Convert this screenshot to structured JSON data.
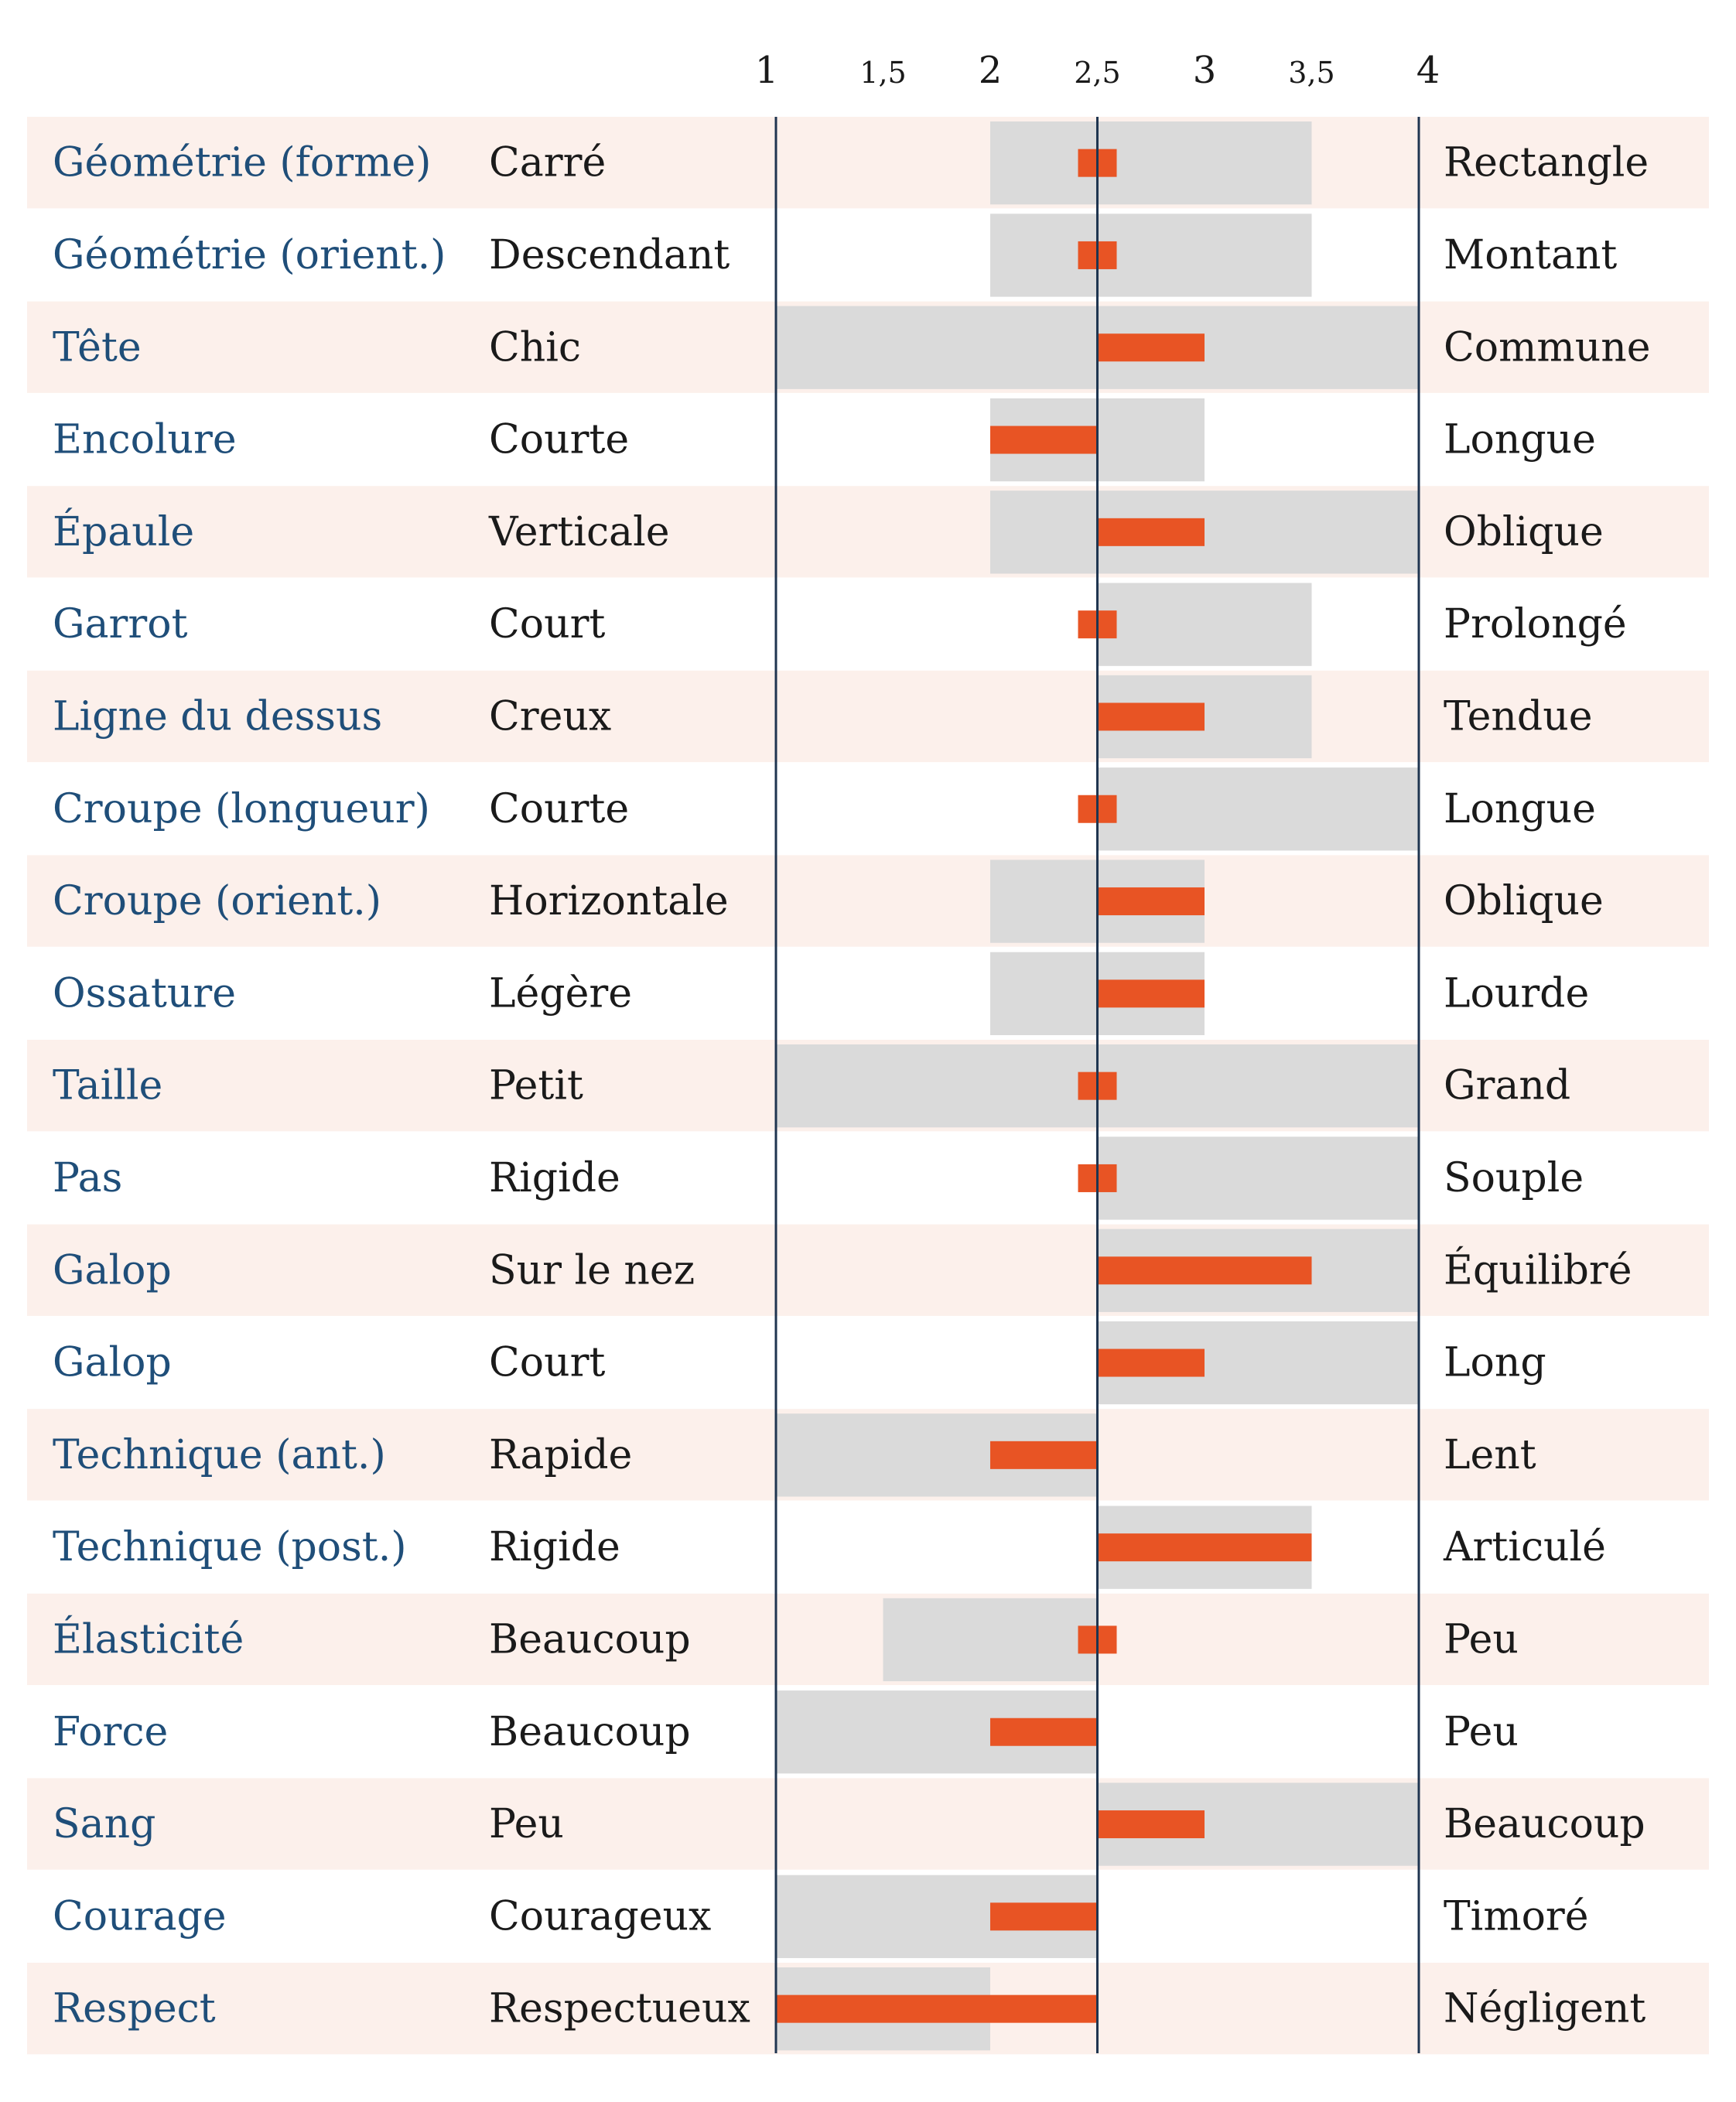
{
  "chart_data": {
    "type": "bar",
    "xlim": [
      1,
      4
    ],
    "center": 2.5,
    "ticks": [
      {
        "value": 1,
        "label": "1",
        "major": true
      },
      {
        "value": 1.5,
        "label": "1,5",
        "major": false
      },
      {
        "value": 2,
        "label": "2",
        "major": true
      },
      {
        "value": 2.5,
        "label": "2,5",
        "major": false
      },
      {
        "value": 3,
        "label": "3",
        "major": true
      },
      {
        "value": 3.5,
        "label": "3,5",
        "major": false
      },
      {
        "value": 4,
        "label": "4",
        "major": true
      }
    ],
    "rows": [
      {
        "name": "Géométrie (forme)",
        "left": "Carré",
        "right": "Rectangle",
        "range": [
          2,
          3.5
        ],
        "value": 2.5
      },
      {
        "name": "Géométrie (orient.)",
        "left": "Descendant",
        "right": "Montant",
        "range": [
          2,
          3.5
        ],
        "value": 2.5
      },
      {
        "name": "Tête",
        "left": "Chic",
        "right": "Commune",
        "range": [
          1,
          4
        ],
        "value": 3
      },
      {
        "name": "Encolure",
        "left": "Courte",
        "right": "Longue",
        "range": [
          2,
          3
        ],
        "value": 2
      },
      {
        "name": "Épaule",
        "left": "Verticale",
        "right": "Oblique",
        "range": [
          2,
          4
        ],
        "value": 3
      },
      {
        "name": "Garrot",
        "left": "Court",
        "right": "Prolongé",
        "range": [
          2.5,
          3.5
        ],
        "value": 2.5
      },
      {
        "name": "Ligne du dessus",
        "left": "Creux",
        "right": "Tendue",
        "range": [
          2.5,
          3.5
        ],
        "value": 3
      },
      {
        "name": "Croupe (longueur)",
        "left": "Courte",
        "right": "Longue",
        "range": [
          2.5,
          4
        ],
        "value": 2.5
      },
      {
        "name": "Croupe (orient.)",
        "left": "Horizontale",
        "right": "Oblique",
        "range": [
          2,
          3
        ],
        "value": 3
      },
      {
        "name": "Ossature",
        "left": "Légère",
        "right": "Lourde",
        "range": [
          2,
          3
        ],
        "value": 3
      },
      {
        "name": "Taille",
        "left": "Petit",
        "right": "Grand",
        "range": [
          1,
          4
        ],
        "value": 2.5
      },
      {
        "name": "Pas",
        "left": "Rigide",
        "right": "Souple",
        "range": [
          2.5,
          4
        ],
        "value": 2.5
      },
      {
        "name": "Galop",
        "left": "Sur le nez",
        "right": "Équilibré",
        "range": [
          2.5,
          4
        ],
        "value": 3.5
      },
      {
        "name": "Galop",
        "left": "Court",
        "right": "Long",
        "range": [
          2.5,
          4
        ],
        "value": 3
      },
      {
        "name": "Technique (ant.)",
        "left": "Rapide",
        "right": "Lent",
        "range": [
          1,
          2.5
        ],
        "value": 2
      },
      {
        "name": "Technique (post.)",
        "left": "Rigide",
        "right": "Articulé",
        "range": [
          2.5,
          3.5
        ],
        "value": 3.5
      },
      {
        "name": "Élasticité",
        "left": "Beaucoup",
        "right": "Peu",
        "range": [
          1.5,
          2.5
        ],
        "value": 2.5
      },
      {
        "name": "Force",
        "left": "Beaucoup",
        "right": "Peu",
        "range": [
          1,
          2.5
        ],
        "value": 2
      },
      {
        "name": "Sang",
        "left": "Peu",
        "right": "Beaucoup",
        "range": [
          2.5,
          4
        ],
        "value": 3
      },
      {
        "name": "Courage",
        "left": "Courageux",
        "right": "Timoré",
        "range": [
          1,
          2.5
        ],
        "value": 2
      },
      {
        "name": "Respect",
        "left": "Respectueux",
        "right": "Négligent",
        "range": [
          1,
          2
        ],
        "value": 1
      }
    ]
  },
  "colors": {
    "stripe": "#fcf0eb",
    "range": "#dadada",
    "value": "#e85424",
    "axis": "#1f3550",
    "name_text": "#1f4e79",
    "text": "#1a1a1a"
  }
}
